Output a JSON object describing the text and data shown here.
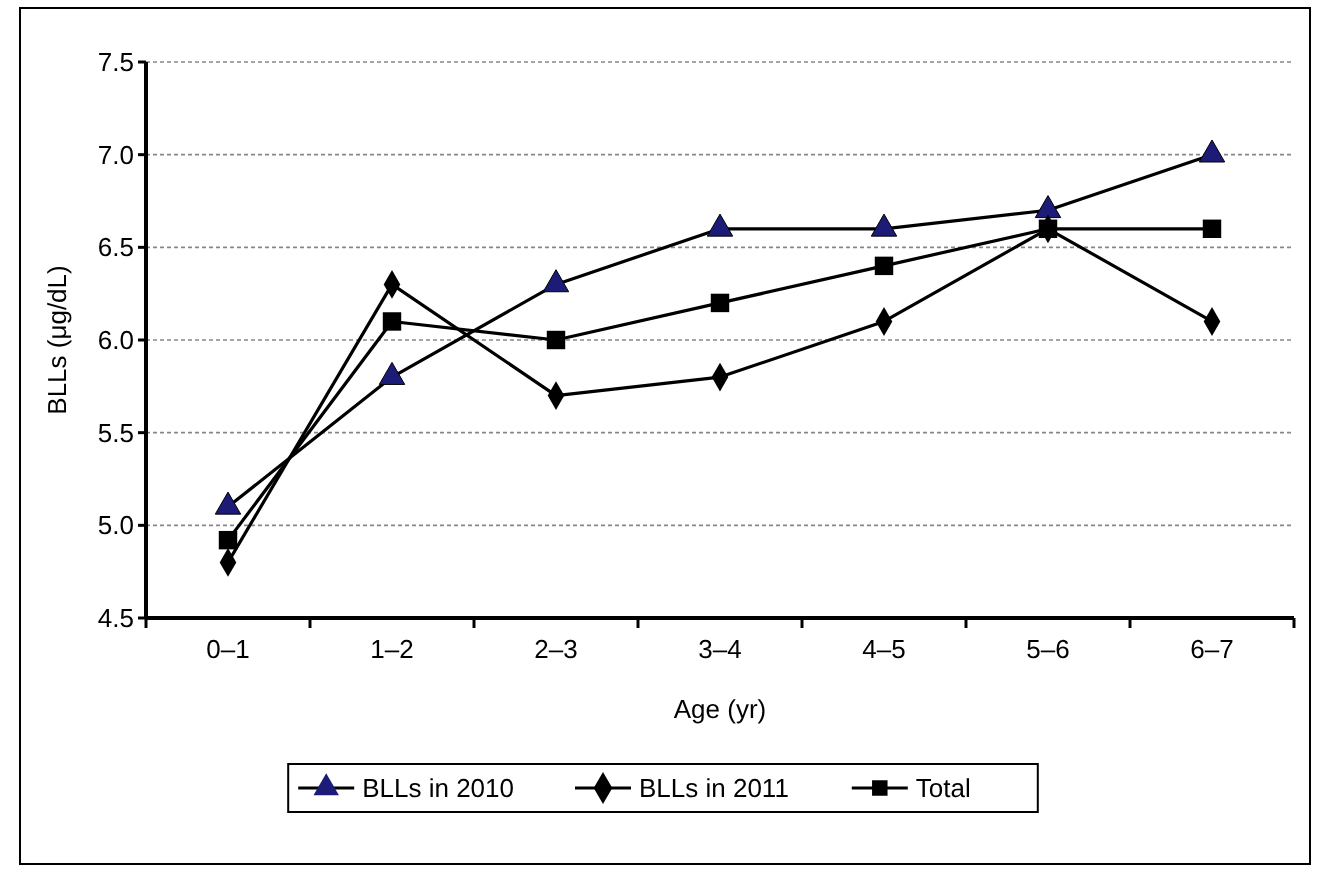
{
  "chart_data": {
    "type": "line",
    "xlabel": "Age (yr)",
    "ylabel": "BLLs (μg/dL)",
    "categories": [
      "0–1",
      "1–2",
      "2–3",
      "3–4",
      "4–5",
      "5–6",
      "6–7"
    ],
    "series": [
      {
        "name": "BLLs in 2010",
        "color": "#1c1c78",
        "marker": "triangle",
        "values": [
          5.1,
          5.8,
          6.3,
          6.6,
          6.6,
          6.7,
          7.0
        ]
      },
      {
        "name": "BLLs in 2011",
        "color": "#000000",
        "marker": "diamond",
        "values": [
          4.8,
          6.3,
          5.7,
          5.8,
          6.1,
          6.6,
          6.1
        ]
      },
      {
        "name": "Total",
        "color": "#000000",
        "marker": "square",
        "values": [
          4.92,
          6.1,
          6.0,
          6.2,
          6.4,
          6.6,
          6.6
        ]
      }
    ],
    "ylim": [
      4.5,
      7.5
    ],
    "yticks": [
      4.5,
      {
        "value": 5,
        "label": "5.0"
      },
      5.5,
      {
        "value": 6,
        "label": "6.0"
      },
      6.5,
      {
        "value": 7,
        "label": "7.0"
      },
      7.5
    ],
    "grid": "y",
    "legend": "bottom",
    "line_style": "solid"
  }
}
